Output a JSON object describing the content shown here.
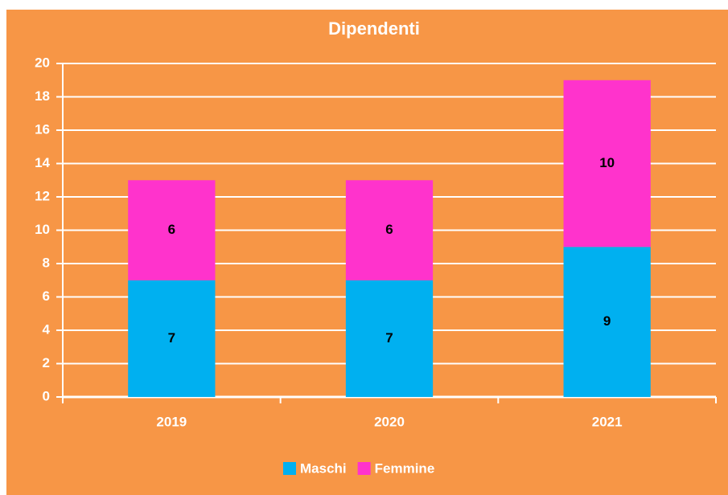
{
  "chart_data": {
    "type": "stacked_bar",
    "title": "Dipendenti",
    "categories": [
      "2019",
      "2020",
      "2021"
    ],
    "series": [
      {
        "name": "Maschi",
        "color": "#00b0f0",
        "values": [
          7,
          7,
          9
        ]
      },
      {
        "name": "Femmine",
        "color": "#ff33cc",
        "values": [
          6,
          6,
          10
        ]
      }
    ],
    "ylim": [
      0,
      20
    ],
    "yticks": [
      0,
      2,
      4,
      6,
      8,
      10,
      12,
      14,
      16,
      18,
      20
    ],
    "grid": true,
    "legend": "bottom"
  }
}
